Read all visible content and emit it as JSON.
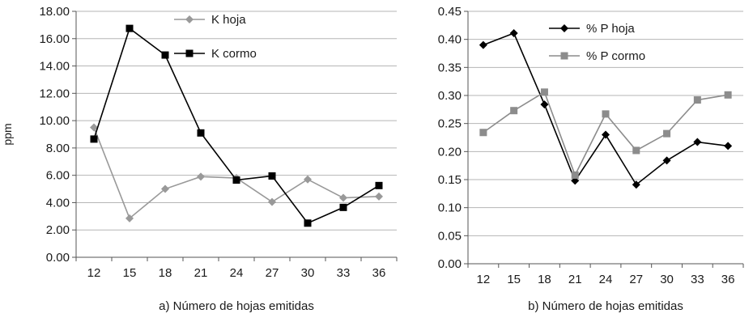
{
  "chart_data": [
    {
      "type": "line",
      "caption": "a) Número de hojas emitidas",
      "ylabel": "ppm",
      "xlabel": "",
      "categories": [
        "12",
        "15",
        "18",
        "21",
        "24",
        "27",
        "30",
        "33",
        "36"
      ],
      "ylim": [
        0,
        18
      ],
      "yticks": [
        "0.00",
        "2.00",
        "4.00",
        "6.00",
        "8.00",
        "10.00",
        "12.00",
        "14.00",
        "16.00",
        "18.00"
      ],
      "grid": true,
      "legend_position": "top-right",
      "series": [
        {
          "name": "K hoja",
          "marker": "diamond",
          "color": "#999999",
          "values": [
            9.5,
            2.85,
            5.0,
            5.9,
            5.8,
            4.05,
            5.7,
            4.35,
            4.45
          ]
        },
        {
          "name": "K cormo",
          "marker": "square",
          "color": "#000000",
          "values": [
            8.65,
            16.75,
            14.8,
            9.1,
            5.65,
            5.95,
            2.5,
            3.65,
            5.25
          ]
        }
      ]
    },
    {
      "type": "line",
      "caption": "b) Número de hojas emitidas",
      "ylabel": "",
      "xlabel": "",
      "categories": [
        "12",
        "15",
        "18",
        "21",
        "24",
        "27",
        "30",
        "33",
        "36"
      ],
      "ylim": [
        0,
        0.45
      ],
      "yticks": [
        "0.00",
        "0.05",
        "0.10",
        "0.15",
        "0.20",
        "0.25",
        "0.30",
        "0.35",
        "0.40",
        "0.45"
      ],
      "grid": true,
      "legend_position": "top-right",
      "series": [
        {
          "name": "% P hoja",
          "marker": "diamond",
          "color": "#000000",
          "values": [
            0.39,
            0.411,
            0.284,
            0.148,
            0.23,
            0.141,
            0.184,
            0.217,
            0.21
          ]
        },
        {
          "name": "% P cormo",
          "marker": "square",
          "color": "#8c8c8c",
          "values": [
            0.234,
            0.273,
            0.306,
            0.158,
            0.267,
            0.202,
            0.232,
            0.292,
            0.301
          ]
        }
      ]
    }
  ]
}
